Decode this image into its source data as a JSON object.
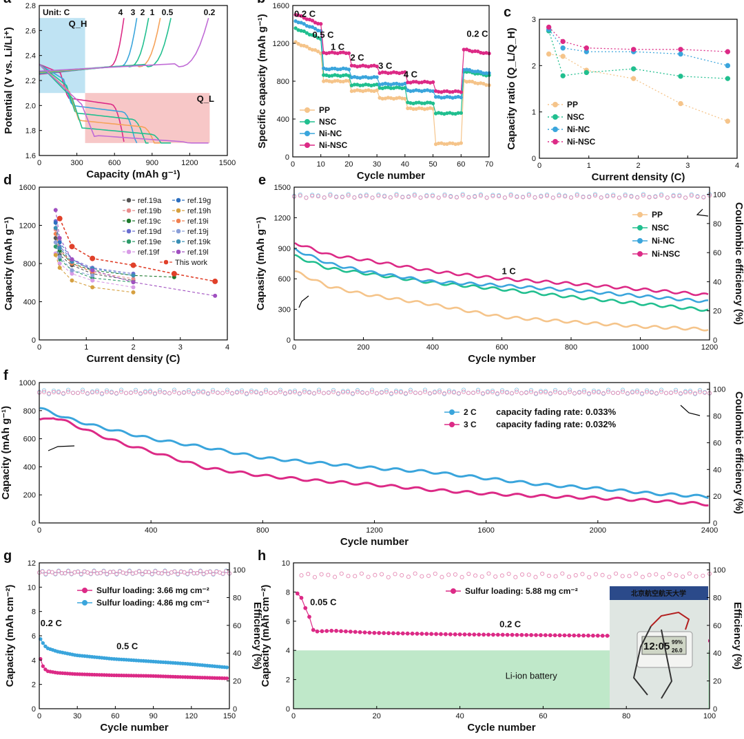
{
  "colors": {
    "PP": "#f5c48a",
    "NSC": "#21bf8f",
    "NiNC": "#3aa5dc",
    "NiNSC": "#dc2a86",
    "ce_pink": "#e58bb5",
    "ce_blue": "#8fcbe6",
    "shade_blue": "#bfe3f3",
    "shade_red": "#f7c7c7",
    "shade_green": "#bfe8c9",
    "ref_pink": "#c06bd6"
  },
  "chart_data": [
    {
      "id": "a",
      "panel_label": "a",
      "type": "line",
      "xlabel": "Capacity (mAh g⁻¹)",
      "ylabel": "Potential (V vs. Li/Li⁺)",
      "xlim": [
        0,
        1600
      ],
      "ylim": [
        1.6,
        2.8
      ],
      "xticks": [
        "0",
        "300",
        "600",
        "900",
        "1200",
        "1500"
      ],
      "yticks": [
        "1.6",
        "1.8",
        "2.0",
        "2.2",
        "2.4",
        "2.6",
        "2.8"
      ],
      "unit_label": "Unit: C",
      "region_high": "Q_H",
      "region_low": "Q_L",
      "series": [
        {
          "name": "4",
          "color": "#dc2a86",
          "cmax": 720
        },
        {
          "name": "3",
          "color": "#3aa5dc",
          "cmax": 830
        },
        {
          "name": "2",
          "color": "#21bf8f",
          "cmax": 930
        },
        {
          "name": "1",
          "color": "#f5a25a",
          "cmax": 1030
        },
        {
          "name": "0.5",
          "color": "#21bf8f",
          "cmax": 1120
        },
        {
          "name": "0.2",
          "color": "#c06bd6",
          "cmax": 1440
        }
      ]
    },
    {
      "id": "b",
      "panel_label": "b",
      "type": "scatter-line",
      "xlabel": "Cycle number",
      "ylabel": "Specific capacity (mAh g⁻¹)",
      "xlim": [
        0,
        70
      ],
      "ylim": [
        0,
        1600
      ],
      "xticks": [
        "0",
        "10",
        "20",
        "30",
        "40",
        "50",
        "60",
        "70"
      ],
      "yticks": [
        "0",
        "400",
        "800",
        "1200",
        "1600"
      ],
      "rate_labels": [
        "0.2 C",
        "0.5 C",
        "1 C",
        "2 C",
        "3 C",
        "4 C",
        "0.2 C"
      ],
      "series": [
        {
          "name": "PP",
          "levels": [
            1100,
            800,
            700,
            620,
            510,
            140,
            780
          ]
        },
        {
          "name": "NSC",
          "levels": [
            1250,
            860,
            760,
            730,
            570,
            460,
            880
          ]
        },
        {
          "name": "Ni-NC",
          "levels": [
            1330,
            930,
            840,
            770,
            700,
            630,
            900
          ]
        },
        {
          "name": "Ni-NSC",
          "levels": [
            1400,
            1100,
            960,
            890,
            790,
            690,
            1110
          ]
        }
      ]
    },
    {
      "id": "c",
      "panel_label": "c",
      "type": "line",
      "xlabel": "Current density (C)",
      "ylabel": "Capacity ratio (Q_L/Q_H)",
      "xlim": [
        0,
        4.2
      ],
      "ylim": [
        0,
        3
      ],
      "xticks": [
        "0",
        "1",
        "2",
        "3",
        "4"
      ],
      "yticks": [
        "0",
        "1",
        "2",
        "3"
      ],
      "x": [
        0.2,
        0.5,
        1,
        2,
        3,
        4
      ],
      "series": [
        {
          "name": "PP",
          "values": [
            2.25,
            2.2,
            1.9,
            1.72,
            1.18,
            0.8
          ]
        },
        {
          "name": "NSC",
          "values": [
            2.75,
            1.78,
            1.85,
            1.93,
            1.77,
            1.72
          ]
        },
        {
          "name": "Ni-NC",
          "values": [
            2.78,
            2.38,
            2.3,
            2.3,
            2.25,
            2.0
          ]
        },
        {
          "name": "Ni-NSC",
          "values": [
            2.83,
            2.52,
            2.38,
            2.35,
            2.35,
            2.3
          ]
        }
      ]
    },
    {
      "id": "d",
      "panel_label": "d",
      "type": "line",
      "xlabel": "Current density (C)",
      "ylabel": "Capacity (mAh g⁻¹)",
      "xlim": [
        -0.3,
        4.3
      ],
      "ylim": [
        0,
        1800
      ],
      "xticks": [
        "0",
        "1",
        "2",
        "3",
        "4"
      ],
      "yticks": [
        "0",
        "400",
        "800",
        "1200",
        "1600"
      ],
      "series": [
        {
          "name": "ref.19a",
          "color": "#555555",
          "x": [
            0.1,
            0.2,
            0.5,
            1,
            2
          ],
          "values": [
            1200,
            1000,
            880,
            780,
            700
          ]
        },
        {
          "name": "ref.19b",
          "color": "#e88c8c",
          "x": [
            0.1,
            0.2,
            0.5,
            1,
            2
          ],
          "values": [
            1300,
            1050,
            900,
            800,
            720
          ]
        },
        {
          "name": "ref.19c",
          "color": "#1e7a2e",
          "x": [
            0.2,
            0.5,
            1,
            2,
            3
          ],
          "values": [
            1050,
            900,
            820,
            760,
            740
          ]
        },
        {
          "name": "ref.19d",
          "color": "#6a6fd0",
          "x": [
            0.1,
            0.2,
            0.5,
            1,
            2
          ],
          "values": [
            1400,
            1100,
            950,
            850,
            780
          ]
        },
        {
          "name": "ref.19e",
          "color": "#2e9a6a",
          "x": [
            0.1,
            0.2,
            0.5,
            1,
            2
          ],
          "values": [
            1100,
            950,
            820,
            730,
            680
          ]
        },
        {
          "name": "ref.19f",
          "color": "#d89be6",
          "x": [
            0.1,
            0.2,
            0.5,
            1,
            2
          ],
          "values": [
            1020,
            900,
            780,
            700,
            620
          ]
        },
        {
          "name": "ref.19g",
          "color": "#2d6fbf",
          "x": [
            0.1,
            0.2,
            0.5,
            1
          ],
          "values": [
            1380,
            1150,
            950,
            820
          ]
        },
        {
          "name": "ref.19h",
          "color": "#d6a040",
          "x": [
            0.1,
            0.2,
            0.5,
            1,
            2
          ],
          "values": [
            1000,
            850,
            700,
            620,
            560
          ]
        },
        {
          "name": "ref.19i",
          "color": "#f08050",
          "x": [
            0.1,
            0.2,
            0.5,
            1
          ],
          "values": [
            1250,
            1080,
            900,
            800
          ]
        },
        {
          "name": "ref.19j",
          "color": "#8a9fd8",
          "x": [
            0.1,
            0.2,
            0.5,
            1
          ],
          "values": [
            1150,
            980,
            820,
            760
          ]
        },
        {
          "name": "ref.19k",
          "color": "#3b8fb5",
          "x": [
            0.1,
            0.2,
            0.5,
            1,
            2
          ],
          "values": [
            1320,
            1080,
            920,
            840,
            760
          ]
        },
        {
          "name": "ref.19l",
          "color": "#a050c0",
          "x": [
            0.1,
            0.2,
            0.5,
            1,
            2,
            4
          ],
          "values": [
            1530,
            1200,
            950,
            820,
            680,
            520
          ]
        },
        {
          "name": "This work",
          "color": "#e0402a",
          "x": [
            0.2,
            0.5,
            1,
            2,
            3,
            4
          ],
          "values": [
            1430,
            1100,
            960,
            880,
            780,
            690
          ]
        }
      ]
    },
    {
      "id": "e",
      "panel_label": "e",
      "type": "scatter-line",
      "xlabel": "Cycle nymber",
      "ylabel": "Capasity (mAh g⁻¹)",
      "y2label": "Coulombic efficiency (%)",
      "xlim": [
        0,
        1200
      ],
      "ylim": [
        0,
        1600
      ],
      "y2lim": [
        0,
        105
      ],
      "xticks": [
        "0",
        "200",
        "400",
        "600",
        "800",
        "1000",
        "1200"
      ],
      "yticks": [
        "0",
        "300",
        "600",
        "900",
        "1200",
        "1500"
      ],
      "y2ticks": [
        "0",
        "20",
        "40",
        "60",
        "80",
        "100"
      ],
      "rate_label": "1 C",
      "series": [
        {
          "name": "PP",
          "x": [
            0,
            100,
            200,
            400,
            600,
            800,
            1000,
            1200
          ],
          "values": [
            720,
            560,
            480,
            370,
            240,
            190,
            140,
            110
          ]
        },
        {
          "name": "NSC",
          "x": [
            0,
            100,
            200,
            400,
            600,
            800,
            1000,
            1200
          ],
          "values": [
            880,
            750,
            700,
            600,
            530,
            450,
            380,
            310
          ]
        },
        {
          "name": "Ni-NC",
          "x": [
            0,
            100,
            200,
            400,
            600,
            800,
            1000,
            1200
          ],
          "values": [
            950,
            800,
            720,
            610,
            570,
            520,
            460,
            400
          ]
        },
        {
          "name": "Ni-NSC",
          "x": [
            0,
            100,
            200,
            400,
            600,
            800,
            1000,
            1200
          ],
          "values": [
            1020,
            890,
            840,
            720,
            640,
            590,
            530,
            470
          ]
        }
      ],
      "ce_value": 99
    },
    {
      "id": "f",
      "panel_label": "f",
      "type": "scatter-line",
      "xlabel": "Cycle number",
      "ylabel": "Capacity (mAh g⁻¹)",
      "y2label": "Coulombic efficiency (%)",
      "xlim": [
        0,
        2400
      ],
      "ylim": [
        0,
        1100
      ],
      "y2lim": [
        0,
        105
      ],
      "xticks": [
        "0",
        "400",
        "800",
        "1200",
        "1600",
        "2000",
        "2400"
      ],
      "yticks": [
        "0",
        "200",
        "400",
        "600",
        "800",
        "1000"
      ],
      "y2ticks": [
        "0",
        "20",
        "40",
        "60",
        "80",
        "100"
      ],
      "series": [
        {
          "name": "2 C",
          "fading": "capacity fading rate: 0.033%",
          "x": [
            0,
            100,
            200,
            400,
            600,
            800,
            1000,
            1200,
            1400,
            1600,
            1800,
            2000,
            2200,
            2400
          ],
          "values": [
            900,
            820,
            760,
            660,
            590,
            510,
            470,
            430,
            400,
            350,
            300,
            270,
            230,
            205
          ]
        },
        {
          "name": "3 C",
          "fading": "capacity fading rate: 0.032%",
          "x": [
            0,
            50,
            100,
            200,
            300,
            400,
            600,
            800,
            1000,
            1200,
            1400,
            1600,
            1800,
            2000,
            2200,
            2400
          ],
          "values": [
            800,
            830,
            790,
            700,
            620,
            560,
            430,
            370,
            330,
            300,
            260,
            230,
            210,
            195,
            175,
            145
          ]
        }
      ],
      "ce_value": 98
    },
    {
      "id": "g",
      "panel_label": "g",
      "type": "scatter-line",
      "xlabel": "Cycle number",
      "ylabel": "Capacity (mAh cm⁻²)",
      "y2label": "Efficiency (%)",
      "xlim": [
        0,
        155
      ],
      "ylim": [
        0,
        12
      ],
      "y2lim": [
        0,
        105
      ],
      "xticks": [
        "0",
        "30",
        "60",
        "90",
        "120",
        "150"
      ],
      "yticks": [
        "0",
        "2",
        "4",
        "6",
        "8",
        "10",
        "12"
      ],
      "y2ticks": [
        "0",
        "20",
        "40",
        "60",
        "80",
        "100"
      ],
      "rate_labels": [
        "0.2 C",
        "0.5 C"
      ],
      "series": [
        {
          "name": "Sulfur loading: 3.66 mg cm⁻²",
          "x": [
            0,
            3,
            6,
            15,
            30,
            60,
            90,
            120,
            153
          ],
          "values": [
            4.4,
            3.5,
            3.1,
            2.95,
            2.85,
            2.75,
            2.7,
            2.6,
            2.5
          ]
        },
        {
          "name": "Sulfur loading: 4.86 mg cm⁻²",
          "x": [
            0,
            3,
            6,
            15,
            30,
            60,
            90,
            120,
            153
          ],
          "values": [
            5.9,
            5.4,
            5.0,
            4.7,
            4.4,
            4.1,
            3.9,
            3.7,
            3.4
          ]
        }
      ],
      "ce_value": 98
    },
    {
      "id": "h",
      "panel_label": "h",
      "type": "scatter-line",
      "xlabel": "Cycle number",
      "ylabel": "Capacity (mAh cm⁻²)",
      "y2label": "Efficiency (%)",
      "xlim": [
        0,
        105
      ],
      "ylim": [
        0,
        10
      ],
      "y2lim": [
        0,
        105
      ],
      "xticks": [
        "0",
        "20",
        "40",
        "60",
        "80",
        "100"
      ],
      "yticks": [
        "0",
        "2",
        "4",
        "6",
        "8",
        "10"
      ],
      "y2ticks": [
        "0",
        "20",
        "40",
        "60",
        "80",
        "100"
      ],
      "rate_labels": [
        "0.05 C",
        "0.2 C"
      ],
      "band_label": "Li-ion battery",
      "series": [
        {
          "name": "Sulfur loading: 5.88 mg cm⁻²",
          "x": [
            1,
            2,
            3,
            4,
            5,
            6,
            10,
            20,
            40,
            60,
            80,
            100,
            105
          ],
          "values": [
            7.9,
            7.6,
            6.9,
            6.3,
            5.4,
            5.3,
            5.35,
            5.2,
            5.1,
            5.05,
            5.0,
            4.7,
            4.65
          ]
        }
      ],
      "ce_value": 96,
      "photo": {
        "header": "北京航空航天大学",
        "lcd_time": "12:05",
        "lcd_a": "99%",
        "lcd_b": "26.0"
      }
    }
  ]
}
